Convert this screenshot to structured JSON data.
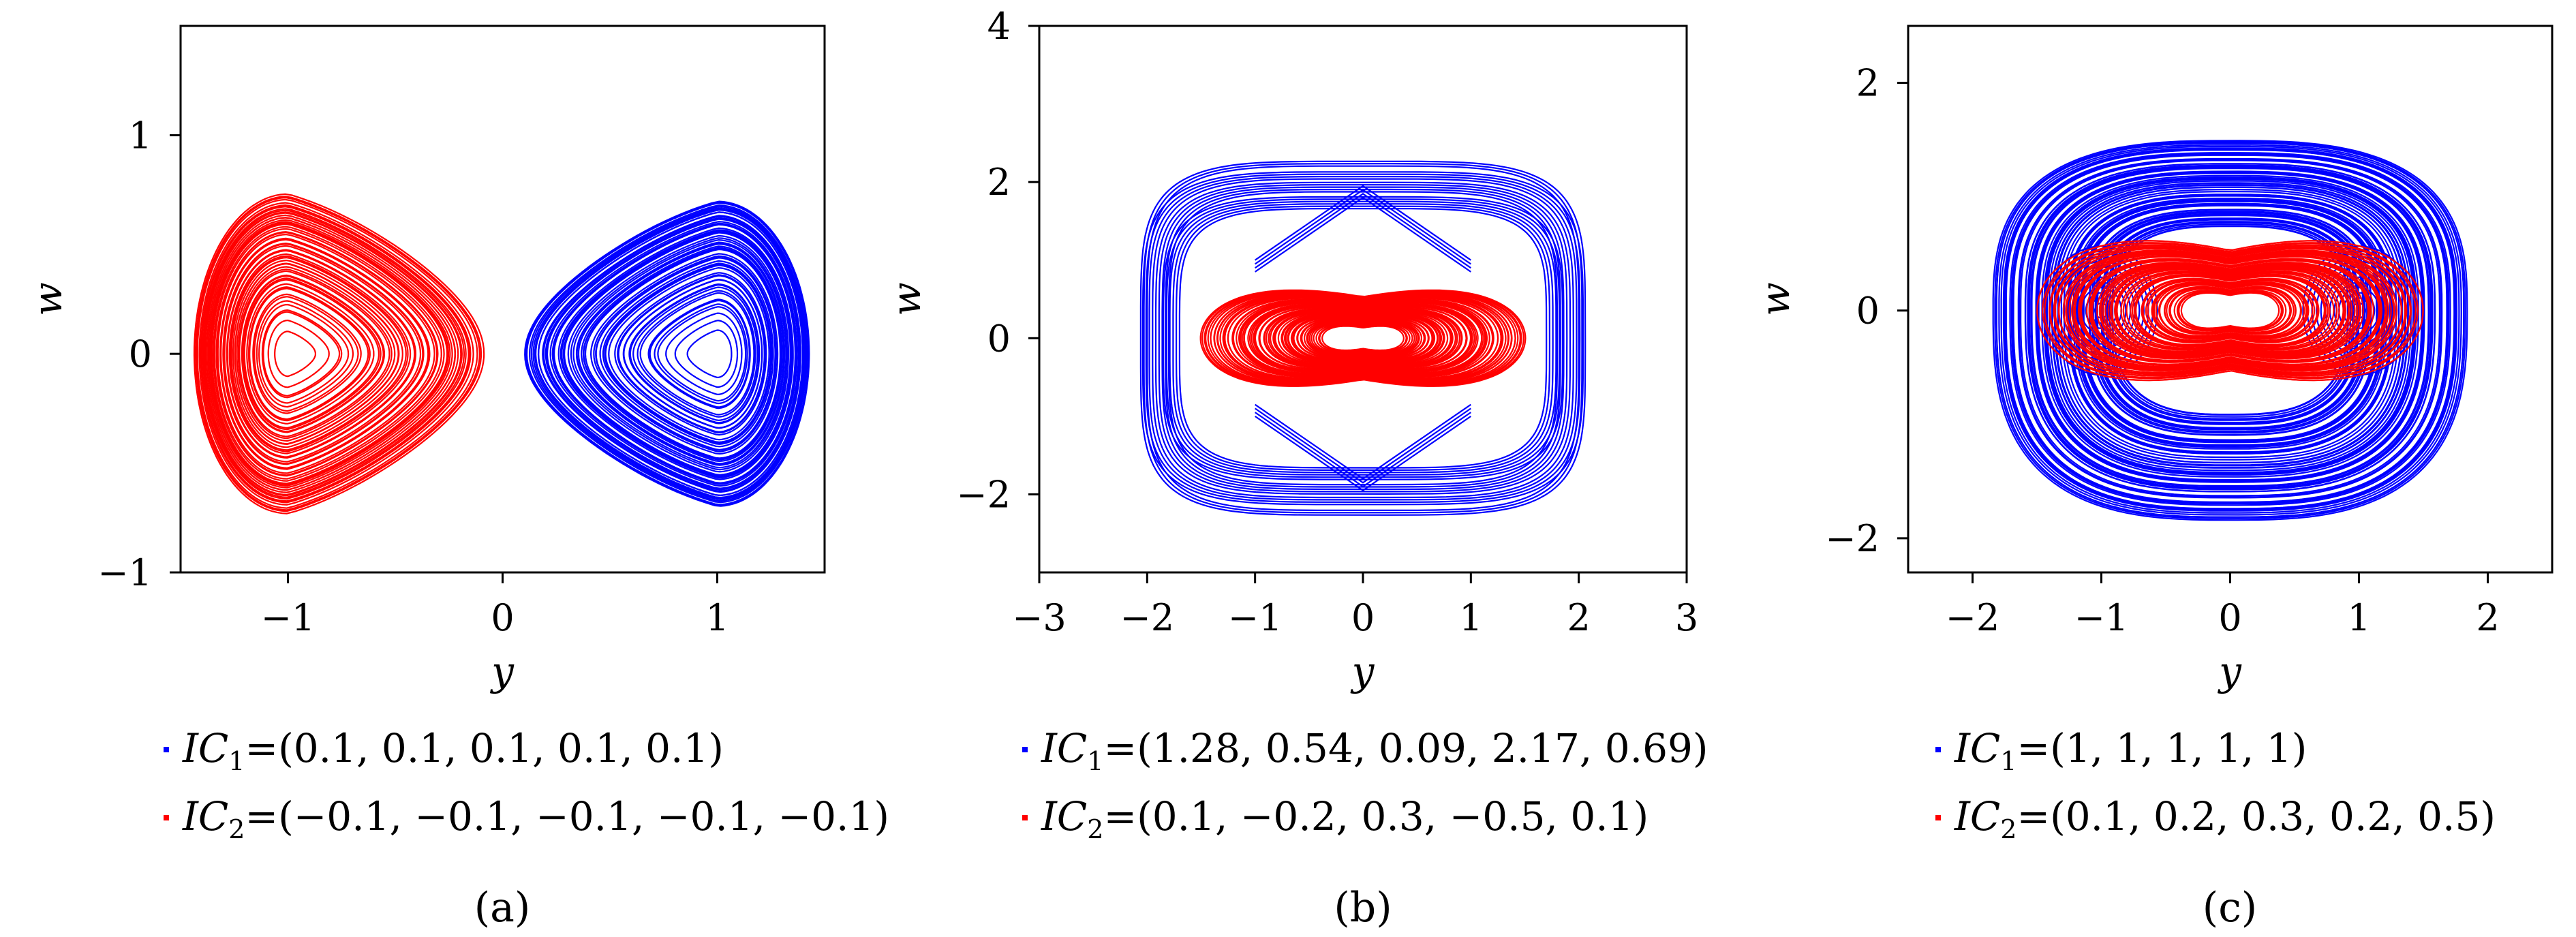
{
  "colors": {
    "series_1": "#0000ff",
    "series_2": "#ff0000",
    "axes": "#000000"
  },
  "chart_data": [
    {
      "type": "line",
      "caption": "(a)",
      "xlabel": "y",
      "ylabel": "w",
      "xlim": [
        -1.5,
        1.5
      ],
      "ylim": [
        -1,
        1.5
      ],
      "xticks": [
        -1,
        0,
        1
      ],
      "yticks": [
        -1,
        0,
        1
      ],
      "xtick_labels": [
        "−1",
        "0",
        "1"
      ],
      "ytick_labels": [
        "−1",
        "0",
        "1"
      ],
      "grid": false,
      "legend_position": "bottom",
      "series": [
        {
          "name": "IC1=(0.1, 0.1, 0.1, 0.1, 0.1)",
          "color": "#0000ff",
          "x_range": [
            0.1,
            1.43
          ],
          "y_range": [
            -0.72,
            0.68
          ],
          "center": [
            1,
            0
          ]
        },
        {
          "name": "IC2=(−0.1, −0.1, −0.1, −0.1, −0.1)",
          "color": "#ff0000",
          "x_range": [
            -1.43,
            -0.1
          ],
          "y_range": [
            -0.68,
            0.72
          ],
          "center": [
            -1,
            0
          ]
        }
      ]
    },
    {
      "type": "line",
      "caption": "(b)",
      "xlabel": "y",
      "ylabel": "w",
      "xlim": [
        -3,
        3
      ],
      "ylim": [
        -3,
        4
      ],
      "xticks": [
        -3,
        -2,
        -1,
        0,
        1,
        2,
        3
      ],
      "yticks": [
        -2,
        0,
        2,
        4
      ],
      "xtick_labels": [
        "−3",
        "−2",
        "−1",
        "0",
        "1",
        "2",
        "3"
      ],
      "ytick_labels": [
        "−2",
        "0",
        "2",
        "4"
      ],
      "grid": false,
      "legend_position": "bottom",
      "series": [
        {
          "name": "IC1=(1.28, 0.54, 0.09, 2.17, 0.69)",
          "color": "#0000ff",
          "x_range": [
            -2.0,
            2.0
          ],
          "y_range": [
            -2.3,
            2.25
          ],
          "center": [
            0,
            0
          ]
        },
        {
          "name": "IC2=(0.1, −0.2, 0.3, −0.5, 0.1)",
          "color": "#ff0000",
          "x_range": [
            -1.5,
            1.5
          ],
          "y_range": [
            -0.85,
            0.9
          ],
          "center": [
            0,
            0
          ]
        }
      ]
    },
    {
      "type": "line",
      "caption": "(c)",
      "xlabel": "y",
      "ylabel": "w",
      "xlim": [
        -2.5,
        2.5
      ],
      "ylim": [
        -2.3,
        2.5
      ],
      "xticks": [
        -2,
        -1,
        0,
        1,
        2
      ],
      "yticks": [
        -2,
        0,
        2
      ],
      "xtick_labels": [
        "−2",
        "−1",
        "0",
        "1",
        "2"
      ],
      "ytick_labels": [
        "−2",
        "0",
        "2"
      ],
      "grid": false,
      "legend_position": "bottom",
      "series": [
        {
          "name": "IC1=(1, 1, 1, 1, 1)",
          "color": "#0000ff",
          "x_range": [
            -1.85,
            1.85
          ],
          "y_range": [
            -1.85,
            1.5
          ],
          "center": [
            0,
            0
          ]
        },
        {
          "name": "IC2=(0.1, 0.2, 0.3, 0.2, 0.5)",
          "color": "#ff0000",
          "x_range": [
            -1.5,
            1.5
          ],
          "y_range": [
            -0.85,
            0.9
          ],
          "center": [
            0,
            0
          ]
        }
      ]
    }
  ],
  "legends": [
    {
      "ic1_label": "IC",
      "ic1_sub": "1",
      "ic1_value": "=(0.1, 0.1, 0.1, 0.1, 0.1)",
      "ic2_label": "IC",
      "ic2_sub": "2",
      "ic2_value": "=(−0.1, −0.1, −0.1, −0.1, −0.1)"
    },
    {
      "ic1_label": "IC",
      "ic1_sub": "1",
      "ic1_value": "=(1.28, 0.54, 0.09, 2.17, 0.69)",
      "ic2_label": "IC",
      "ic2_sub": "2",
      "ic2_value": "=(0.1, −0.2, 0.3, −0.5, 0.1)"
    },
    {
      "ic1_label": "IC",
      "ic1_sub": "1",
      "ic1_value": "=(1, 1, 1, 1, 1)",
      "ic2_label": "IC",
      "ic2_sub": "2",
      "ic2_value": "=(0.1, 0.2, 0.3, 0.2, 0.5)"
    }
  ]
}
